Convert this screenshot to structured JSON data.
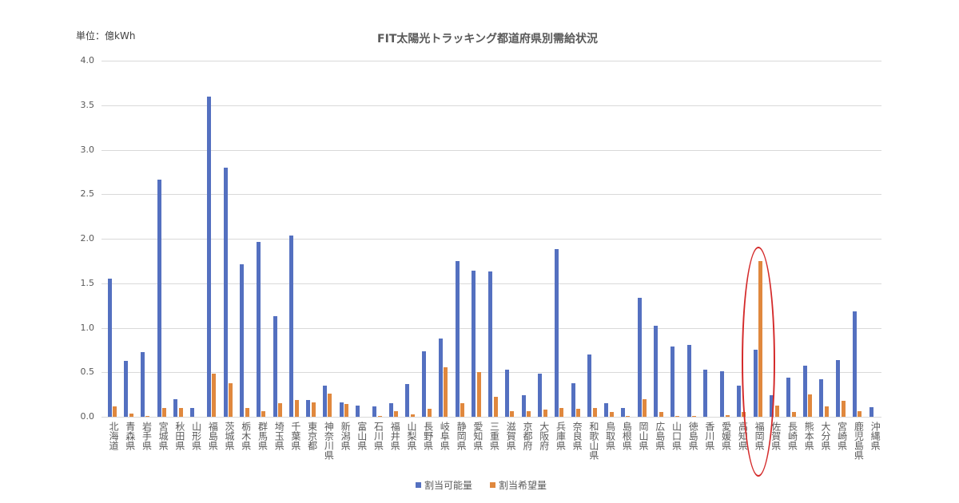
{
  "chart_data": {
    "type": "bar",
    "title": "FIT太陽光トラッキング都道府県別需給状況",
    "unit_label": "単位：億kWh",
    "xlabel": "",
    "ylabel": "億kWh",
    "ylim": [
      0,
      4.0
    ],
    "yticks": [
      "0.0",
      "0.5",
      "1.0",
      "1.5",
      "2.0",
      "2.5",
      "3.0",
      "3.5",
      "4.0"
    ],
    "grid": true,
    "legend_position": "bottom",
    "categories": [
      "北海道",
      "青森県",
      "岩手県",
      "宮城県",
      "秋田県",
      "山形県",
      "福島県",
      "茨城県",
      "栃木県",
      "群馬県",
      "埼玉県",
      "千葉県",
      "東京都",
      "神奈川県",
      "新潟県",
      "富山県",
      "石川県",
      "福井県",
      "山梨県",
      "長野県",
      "岐阜県",
      "静岡県",
      "愛知県",
      "三重県",
      "滋賀県",
      "京都府",
      "大阪府",
      "兵庫県",
      "奈良県",
      "和歌山県",
      "鳥取県",
      "島根県",
      "岡山県",
      "広島県",
      "山口県",
      "徳島県",
      "香川県",
      "愛媛県",
      "高知県",
      "福岡県",
      "佐賀県",
      "長崎県",
      "熊本県",
      "大分県",
      "宮崎県",
      "鹿児島県",
      "沖縄県"
    ],
    "series": [
      {
        "name": "割当可能量",
        "color": "#5470C0",
        "values": [
          1.55,
          0.63,
          0.73,
          2.66,
          0.2,
          0.1,
          3.6,
          2.8,
          1.71,
          1.96,
          1.13,
          2.04,
          0.19,
          0.35,
          0.16,
          0.13,
          0.12,
          0.15,
          0.37,
          0.74,
          0.88,
          1.75,
          1.64,
          1.63,
          0.53,
          0.24,
          0.48,
          1.88,
          0.38,
          0.7,
          0.15,
          0.1,
          1.34,
          1.02,
          0.79,
          0.81,
          0.53,
          0.51,
          0.35,
          0.75,
          0.24,
          0.44,
          0.57,
          0.42,
          0.64,
          1.18,
          0.11
        ]
      },
      {
        "name": "割当希望量",
        "color": "#E0883E",
        "values": [
          0.12,
          0.04,
          0.01,
          0.1,
          0.1,
          0.0,
          0.48,
          0.38,
          0.1,
          0.06,
          0.15,
          0.19,
          0.16,
          0.26,
          0.14,
          0.0,
          0.01,
          0.06,
          0.03,
          0.09,
          0.56,
          0.15,
          0.5,
          0.22,
          0.06,
          0.06,
          0.08,
          0.1,
          0.09,
          0.1,
          0.05,
          0.01,
          0.2,
          0.05,
          0.01,
          0.01,
          0.0,
          0.02,
          0.05,
          1.75,
          0.13,
          0.05,
          0.25,
          0.12,
          0.18,
          0.06,
          0.0
        ]
      }
    ],
    "annotations": [
      {
        "type": "ellipse",
        "color": "#D42A2A",
        "target_category": "福岡県"
      }
    ]
  }
}
